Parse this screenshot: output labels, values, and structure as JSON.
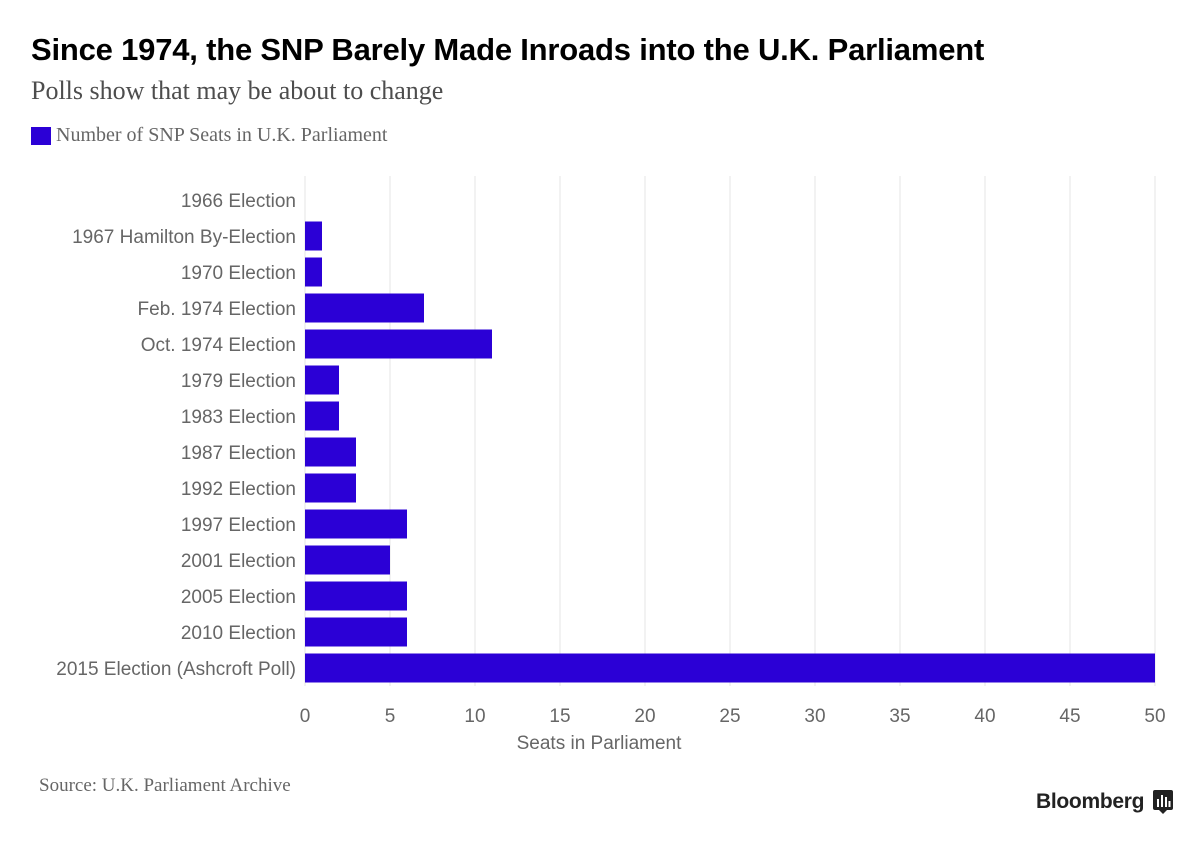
{
  "colors": {
    "bar": "#2b00d6",
    "grid": "#e6e6e6",
    "axis_text": "#666666"
  },
  "header": {
    "title": "Since 1974, the SNP Barely Made Inroads into the U.K. Parliament",
    "subtitle": "Polls show that may be about to change"
  },
  "legend": {
    "label": "Number of SNP Seats in U.K. Parliament"
  },
  "footer": {
    "source": "Source: U.K. Parliament Archive",
    "brand": "Bloomberg",
    "brand_icon": "bloomberg-chart-icon"
  },
  "chart_data": {
    "type": "bar",
    "orientation": "horizontal",
    "title": "Since 1974, the SNP Barely Made Inroads into the U.K. Parliament",
    "subtitle": "Polls show that may be about to change",
    "xlabel": "Seats in Parliament",
    "ylabel": "",
    "xlim": [
      0,
      50
    ],
    "xticks": [
      0,
      5,
      10,
      15,
      20,
      25,
      30,
      35,
      40,
      45,
      50
    ],
    "grid": true,
    "legend_position": "top-left",
    "categories": [
      "1966 Election",
      "1967 Hamilton By-Election",
      "1970 Election",
      "Feb. 1974 Election",
      "Oct. 1974 Election",
      "1979 Election",
      "1983 Election",
      "1987 Election",
      "1992 Election",
      "1997 Election",
      "2001 Election",
      "2005 Election",
      "2010 Election",
      "2015 Election (Ashcroft Poll)"
    ],
    "series": [
      {
        "name": "Number of SNP Seats in U.K. Parliament",
        "values": [
          0,
          1,
          1,
          7,
          11,
          2,
          2,
          3,
          3,
          6,
          5,
          6,
          6,
          50
        ]
      }
    ]
  }
}
